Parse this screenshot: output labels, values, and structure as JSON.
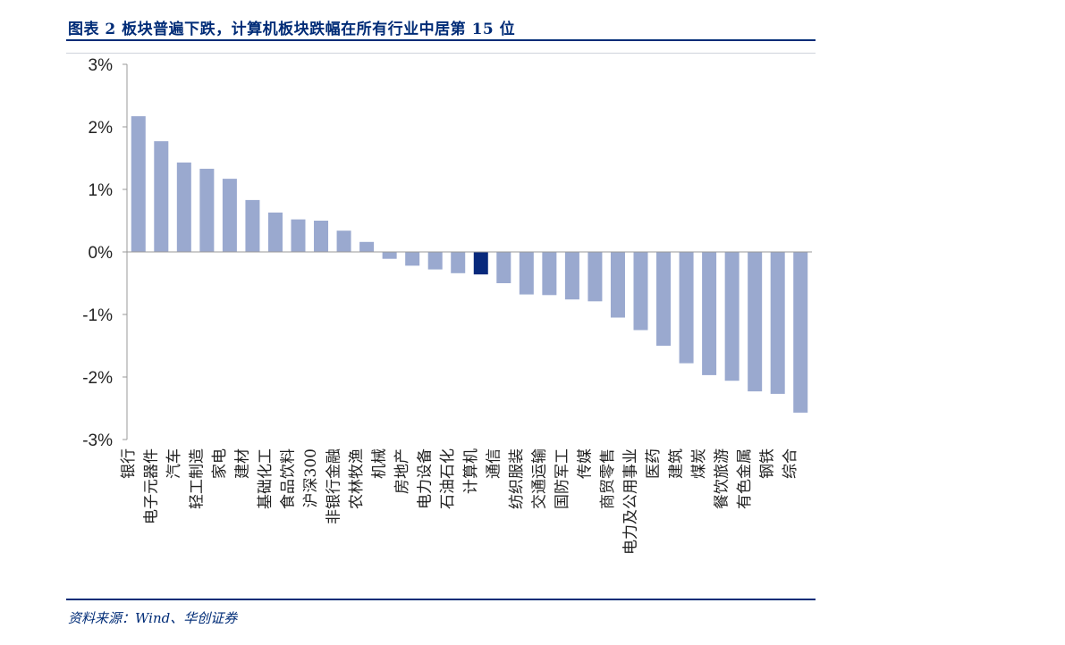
{
  "header": {
    "title": "图表 2   板块普遍下跌，计算机板块跌幅在所有行业中居第 15 位"
  },
  "footer": {
    "source": "资料来源：Wind、华创证券"
  },
  "colors": {
    "bar": "#9aa9cf",
    "highlight": "#08297c",
    "accent": "#002c77",
    "axis": "#999999"
  },
  "chart_data": {
    "type": "bar",
    "title": "板块普遍下跌，计算机板块跌幅在所有行业中居第 15 位",
    "xlabel": "",
    "ylabel": "",
    "ylim": [
      -3,
      3
    ],
    "yticks": [
      3,
      2,
      1,
      0,
      -1,
      -2,
      -3
    ],
    "ytick_labels": [
      "3%",
      "2%",
      "1%",
      "0%",
      "-1%",
      "-2%",
      "-3%"
    ],
    "unit": "%",
    "grid": false,
    "highlight_category": "计算机",
    "categories": [
      "银行",
      "电子元器件",
      "汽车",
      "轻工制造",
      "家电",
      "建材",
      "基础化工",
      "食品饮料",
      "沪深300",
      "非银行金融",
      "农林牧渔",
      "机械",
      "房地产",
      "电力设备",
      "石油石化",
      "计算机",
      "通信",
      "纺织服装",
      "交通运输",
      "国防军工",
      "传媒",
      "商贸零售",
      "电力及公用事业",
      "医药",
      "建筑",
      "煤炭",
      "餐饮旅游",
      "有色金属",
      "钢铁",
      "综合"
    ],
    "values": [
      2.17,
      1.77,
      1.43,
      1.33,
      1.17,
      0.83,
      0.63,
      0.52,
      0.5,
      0.34,
      0.16,
      -0.11,
      -0.22,
      -0.28,
      -0.34,
      -0.36,
      -0.5,
      -0.68,
      -0.69,
      -0.76,
      -0.79,
      -1.05,
      -1.25,
      -1.5,
      -1.78,
      -1.97,
      -2.06,
      -2.23,
      -2.27,
      -2.57
    ]
  }
}
